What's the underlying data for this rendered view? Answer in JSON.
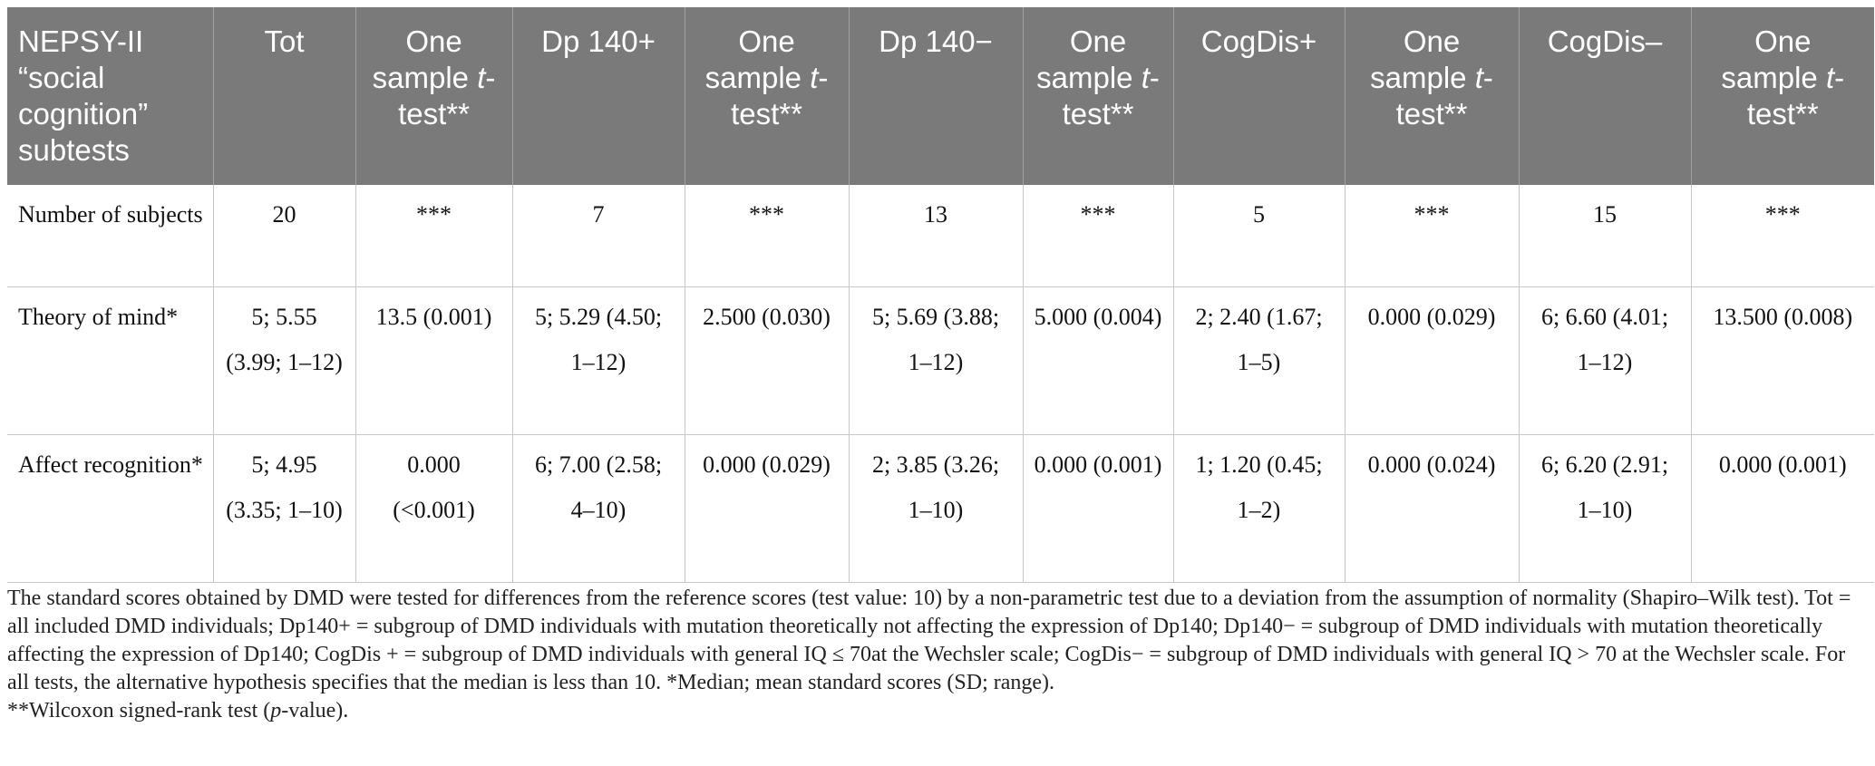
{
  "table": {
    "headers": [
      {
        "text": "NEPSY-II “social cognition” subtests",
        "pre": "",
        "it": "",
        "post": ""
      },
      {
        "text": "Tot",
        "pre": "",
        "it": "",
        "post": ""
      },
      {
        "text": "",
        "pre": "One sample ",
        "it": "t",
        "post": "-test**"
      },
      {
        "text": "Dp 140+",
        "pre": "",
        "it": "",
        "post": ""
      },
      {
        "text": "",
        "pre": "One sample ",
        "it": "t",
        "post": "-test**"
      },
      {
        "text": "Dp 140−",
        "pre": "",
        "it": "",
        "post": ""
      },
      {
        "text": "",
        "pre": "One sample ",
        "it": "t",
        "post": "-test**"
      },
      {
        "text": "CogDis+",
        "pre": "",
        "it": "",
        "post": ""
      },
      {
        "text": "",
        "pre": "One sample ",
        "it": "t",
        "post": "-test**"
      },
      {
        "text": "CogDis–",
        "pre": "",
        "it": "",
        "post": ""
      },
      {
        "text": "",
        "pre": "One sample ",
        "it": "t",
        "post": "-test**"
      }
    ],
    "rows": [
      [
        "Number of subjects",
        "20",
        "***",
        "7",
        "***",
        "13",
        "***",
        "5",
        "***",
        "15",
        "***"
      ],
      [
        "Theory of mind*",
        "5; 5.55 (3.99; 1–12)",
        "13.5 (0.001)",
        "5; 5.29 (4.50; 1–12)",
        "2.500 (0.030)",
        "5; 5.69 (3.88; 1–12)",
        "5.000 (0.004)",
        "2; 2.40 (1.67; 1–5)",
        "0.000 (0.029)",
        "6; 6.60 (4.01; 1–12)",
        "13.500 (0.008)"
      ],
      [
        "Affect recognition*",
        "5; 4.95 (3.35; 1–10)",
        "0.000 (<0.001)",
        "6; 7.00 (2.58; 4–10)",
        "0.000 (0.029)",
        "2; 3.85 (3.26; 1–10)",
        "0.000 (0.001)",
        "1; 1.20 (0.45; 1–2)",
        "0.000 (0.024)",
        "6; 6.20 (2.91; 1–10)",
        "0.000 (0.001)"
      ]
    ]
  },
  "footnote": {
    "main": "The standard scores obtained by DMD were tested for differences from the reference scores (test value: 10) by a non-parametric test due to a deviation from the assumption of normality (Shapiro–Wilk test). Tot = all included DMD individuals; Dp140+ = subgroup of DMD individuals with mutation theoretically not affecting the expression of Dp140; Dp140− = subgroup of DMD individuals with mutation theoretically affecting the expression of Dp140; CogDis + = subgroup of DMD individuals with general IQ ≤ 70at the Wechsler scale; CogDis− = subgroup of DMD individuals with general IQ > 70 at the Wechsler scale. For all tests, the alternative hypothesis specifies that the median is less than 10. *Median; mean standard scores (SD; range).",
    "wilcoxon_pre": "**Wilcoxon signed-rank test (",
    "wilcoxon_it": "p",
    "wilcoxon_post": "-value)."
  }
}
